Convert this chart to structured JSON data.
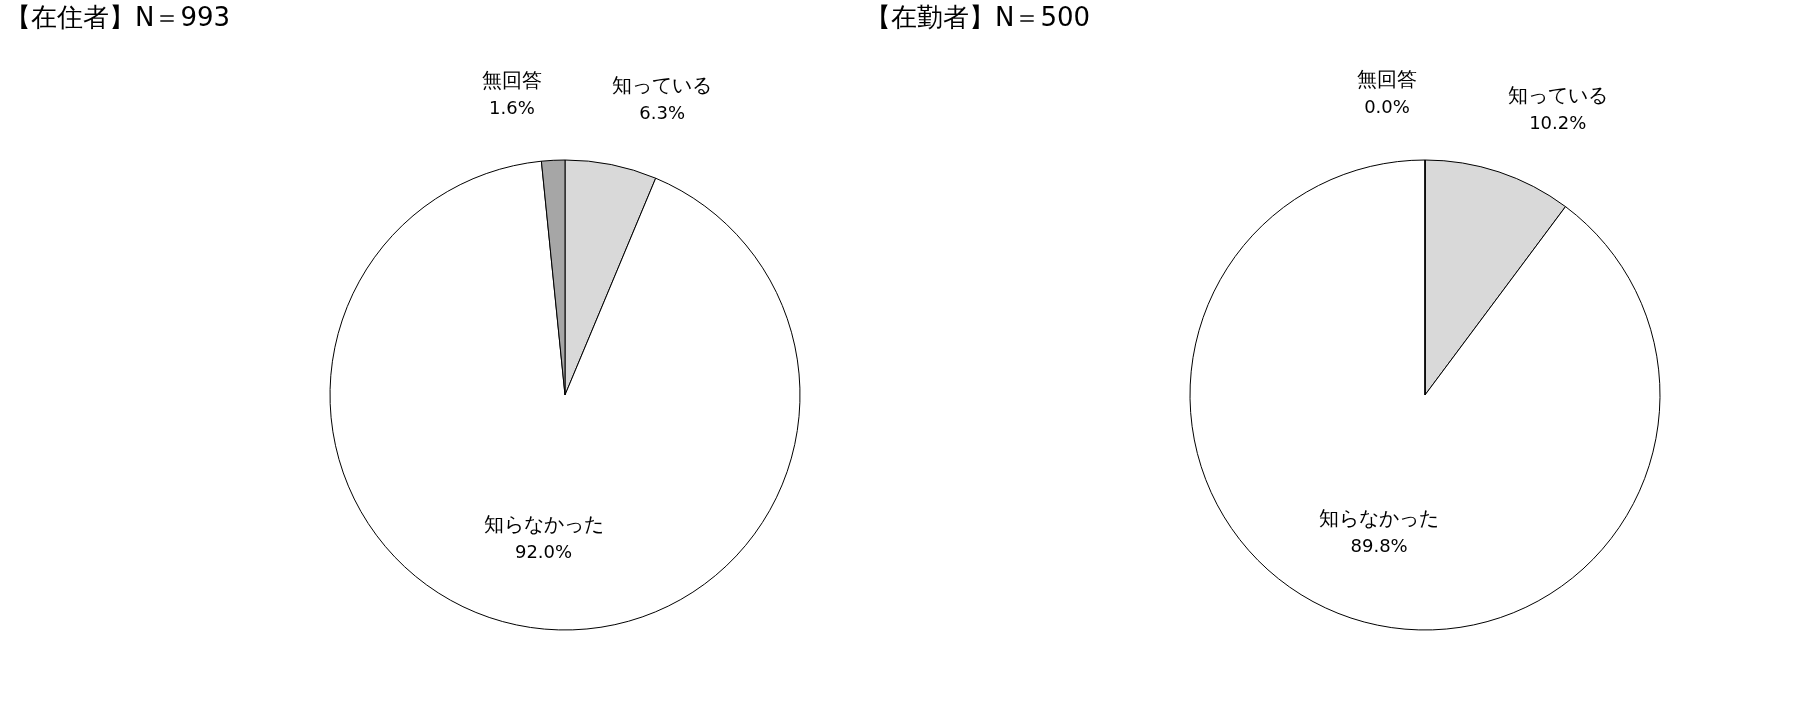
{
  "chart_data": [
    {
      "type": "pie",
      "title": "【在住者】N＝993",
      "categories": [
        "知っている",
        "知らなかった",
        "無回答"
      ],
      "values": [
        6.3,
        92.0,
        1.6
      ],
      "value_labels": [
        "6.3%",
        "92.0%",
        "1.6%"
      ],
      "colors": [
        "#d9d9d9",
        "#ffffff",
        "#a6a6a6"
      ],
      "legend": false
    },
    {
      "type": "pie",
      "title": "【在勤者】N＝500",
      "categories": [
        "知っている",
        "知らなかった",
        "無回答"
      ],
      "values": [
        10.2,
        89.8,
        0.0
      ],
      "value_labels": [
        "10.2%",
        "89.8%",
        "0.0%"
      ],
      "colors": [
        "#d9d9d9",
        "#ffffff",
        "#a6a6a6"
      ],
      "legend": false
    }
  ]
}
